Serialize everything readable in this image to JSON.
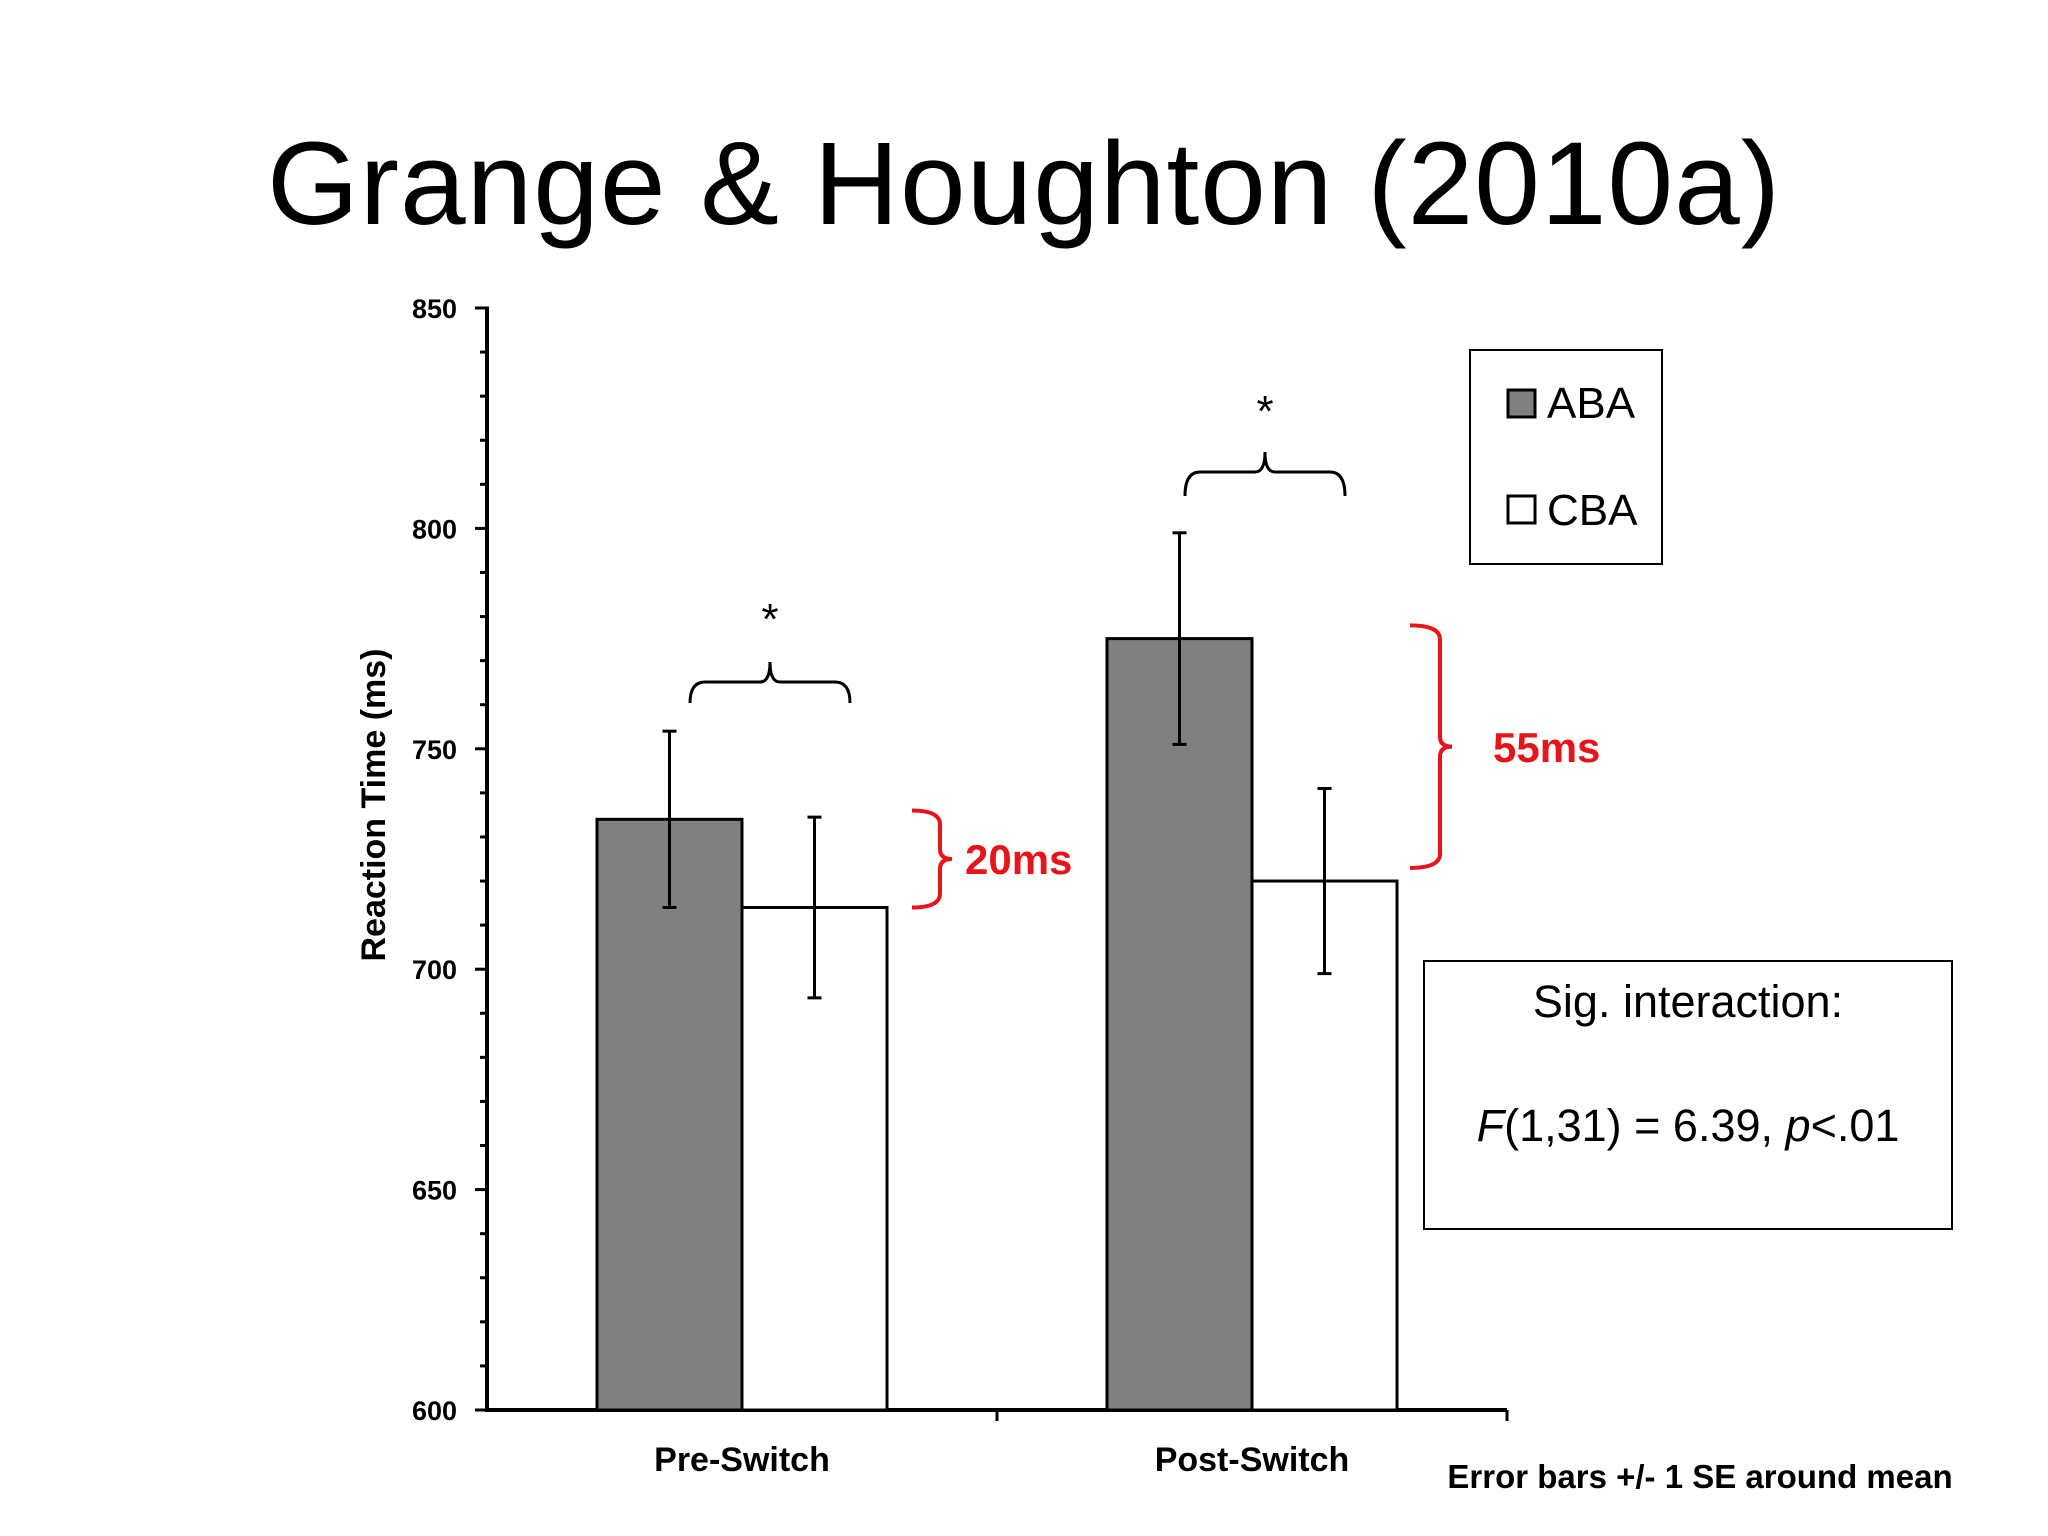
{
  "slide": {
    "title": "Grange & Houghton (2010a)"
  },
  "chart_data": {
    "type": "bar",
    "categories": [
      "Pre-Switch",
      "Post-Switch"
    ],
    "series": [
      {
        "name": "ABA",
        "values": [
          734,
          775
        ],
        "error": [
          20,
          24
        ],
        "color": "#808080"
      },
      {
        "name": "CBA",
        "values": [
          714,
          720
        ],
        "error": [
          20.5,
          21
        ],
        "color": "#ffffff"
      }
    ],
    "ylabel": "Reaction Time (ms)",
    "ylim": [
      600,
      850
    ],
    "yticks": [
      "600",
      "650",
      "700",
      "750",
      "800",
      "850"
    ],
    "ytick_values": [
      600,
      650,
      700,
      750,
      800,
      850
    ],
    "grid": false,
    "legend_position": "top-right",
    "significance_markers": [
      "*",
      "*"
    ],
    "difference_labels": [
      {
        "text": "20ms",
        "from": 714,
        "to": 736
      },
      {
        "text": "55ms",
        "from": 723,
        "to": 778
      }
    ],
    "annotation": {
      "line1": "Sig. interaction:",
      "line2_f": "F",
      "line2_mid": "(1,31) = 6.39, ",
      "line2_p": "p",
      "line2_end": "<.01"
    },
    "footnote": "Error bars +/- 1 SE around mean"
  }
}
